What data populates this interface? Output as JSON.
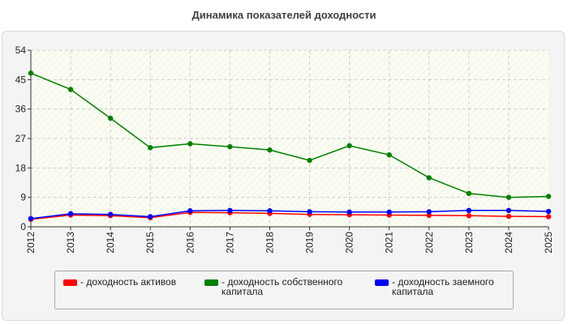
{
  "title": "Динамика показателей доходности",
  "chart_data": {
    "type": "line",
    "categories": [
      "2012",
      "2013",
      "2014",
      "2015",
      "2016",
      "2017",
      "2018",
      "2019",
      "2020",
      "2021",
      "2022",
      "2023",
      "2024",
      "2025"
    ],
    "ylim": [
      0,
      54
    ],
    "yticks": [
      0,
      9,
      18,
      27,
      36,
      45,
      54
    ],
    "grid": true,
    "legend_position": "bottom",
    "series": [
      {
        "name": "- доходность активов",
        "color": "#ff0000",
        "values": [
          2.3,
          3.6,
          3.4,
          2.8,
          4.4,
          4.3,
          4.1,
          3.8,
          3.7,
          3.6,
          3.5,
          3.4,
          3.2,
          3.1
        ]
      },
      {
        "name": "- доходность собственного капитала",
        "color": "#008000",
        "values": [
          47.0,
          42.0,
          33.2,
          24.2,
          25.4,
          24.5,
          23.5,
          20.3,
          24.8,
          22.0,
          15.0,
          10.2,
          9.0,
          9.3
        ]
      },
      {
        "name": "- доходность заемного капитала",
        "color": "#0000ff",
        "values": [
          2.5,
          4.0,
          3.8,
          3.1,
          4.9,
          5.0,
          4.9,
          4.6,
          4.5,
          4.5,
          4.6,
          5.0,
          5.0,
          4.7
        ]
      }
    ]
  }
}
